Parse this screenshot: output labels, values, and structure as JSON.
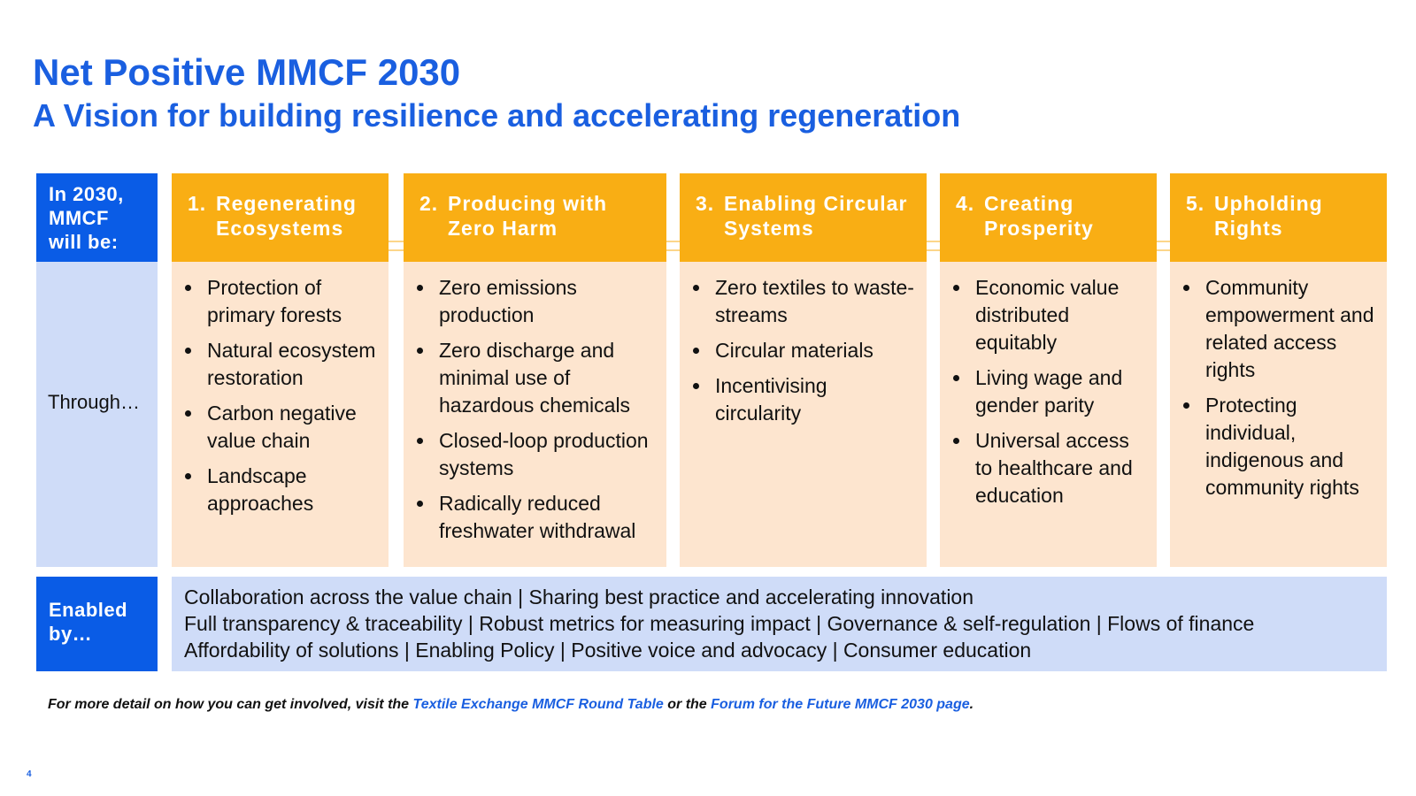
{
  "header": {
    "title": "Net Positive MMCF 2030",
    "subtitle": "A Vision for building resilience and accelerating regeneration"
  },
  "rows": {
    "vision_label": "In 2030, MMCF will be:",
    "through_label": "Through…",
    "enabled_label": "Enabled by…"
  },
  "columns": [
    {
      "number": "1.",
      "title": "Regenerating Ecosystems",
      "bullets": [
        "Protection of primary forests",
        "Natural ecosystem restoration",
        "Carbon negative value chain",
        "Landscape approaches"
      ]
    },
    {
      "number": "2.",
      "title": "Producing with Zero Harm",
      "bullets": [
        "Zero emissions production",
        "Zero discharge and minimal use of hazardous chemicals",
        "Closed-loop production systems",
        "Radically reduced freshwater withdrawal"
      ]
    },
    {
      "number": "3.",
      "title": "Enabling Circular Systems",
      "bullets": [
        "Zero textiles to waste-streams",
        "Circular materials",
        "Incentivising circularity"
      ]
    },
    {
      "number": "4.",
      "title": "Creating Prosperity",
      "bullets": [
        "Economic value distributed equitably",
        "Living wage and gender parity",
        "Universal access to healthcare and education"
      ]
    },
    {
      "number": "5.",
      "title": "Upholding Rights",
      "bullets": [
        "Community empowerment and related access rights",
        "Protecting individual, indigenous and community rights"
      ]
    }
  ],
  "enablers": [
    "Collaboration across the value chain | Sharing best practice and accelerating innovation",
    "Full transparency & traceability | Robust metrics for measuring impact | Governance & self-regulation | Flows of finance",
    "Affordability of solutions | Enabling Policy | Positive voice and advocacy | Consumer education"
  ],
  "footer": {
    "text_before": "For more detail on how you can get involved, visit the ",
    "link1": "Textile Exchange MMCF Round Table",
    "text_middle": " or the ",
    "link2": "Forum for the Future MMCF 2030 page",
    "text_after": "."
  },
  "page_number": "4"
}
